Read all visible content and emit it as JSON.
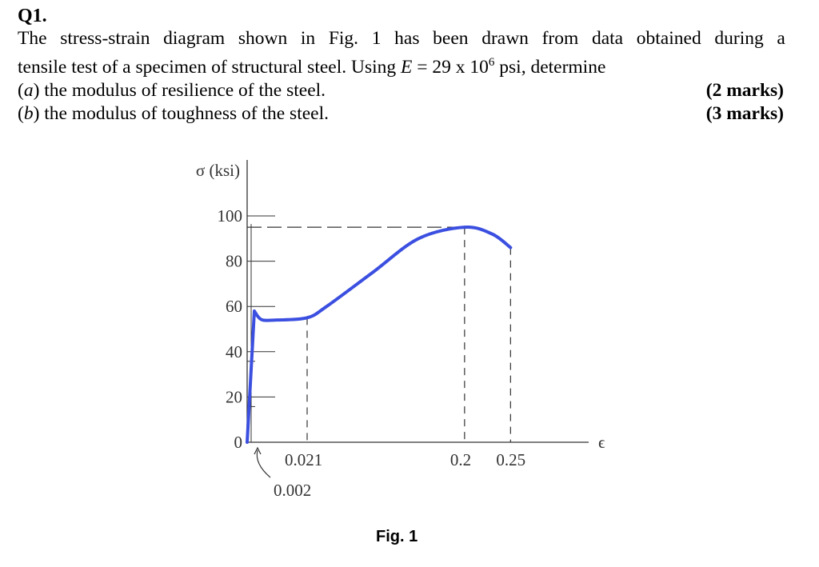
{
  "question": {
    "number": "Q1.",
    "intro_line1_words": [
      "The",
      "stress-strain",
      "diagram",
      "shown",
      "in",
      "Fig.",
      "1",
      "has",
      "been",
      "drawn",
      "from",
      "data",
      "obtained",
      "during",
      "a"
    ],
    "intro_line2_pre": "tensile test of a specimen of structural steel. Using ",
    "intro_line2_var": "E",
    "intro_line2_mid": " = 29 x 10",
    "intro_line2_sup": "6",
    "intro_line2_post": " psi, determine",
    "part_a_label": "a",
    "part_a_text": " the modulus of resilience of the steel.",
    "part_a_marks": "(2 marks)",
    "part_b_label": "b",
    "part_b_text": " the modulus of toughness of the steel.",
    "part_b_marks": "(3 marks)"
  },
  "figure": {
    "caption": "Fig. 1",
    "y_axis_label": "σ (ksi)",
    "x_axis_label": "ϵ",
    "y_ticks": [
      "100",
      "80",
      "60",
      "40",
      "20",
      "0"
    ],
    "x_ticks": [
      "0.021",
      "0.2",
      "0.25"
    ],
    "callout_label": "0.002"
  },
  "chart_data": {
    "type": "line",
    "title": "",
    "xlabel": "ϵ",
    "ylabel": "σ (ksi)",
    "y_ticks": [
      0,
      20,
      40,
      60,
      80,
      100
    ],
    "x_ticks_labeled": [
      0.021,
      0.2,
      0.25
    ],
    "annotated_strain": 0.002,
    "colors": {
      "curve": "#3b4fe0",
      "axes": "#333333"
    },
    "series": [
      {
        "x": [
          0,
          0.002,
          0.003,
          0.005,
          0.01,
          0.021,
          0.05,
          0.1,
          0.15,
          0.2,
          0.23,
          0.25
        ],
        "y": [
          0,
          58,
          56,
          54,
          54,
          55,
          60,
          75,
          90,
          95,
          92,
          86
        ]
      }
    ],
    "reference_lines": [
      {
        "x": 0.021,
        "y": 55
      },
      {
        "x": 0.2,
        "y": 95
      },
      {
        "x": 0.25,
        "y": 86
      }
    ],
    "grid": false
  }
}
